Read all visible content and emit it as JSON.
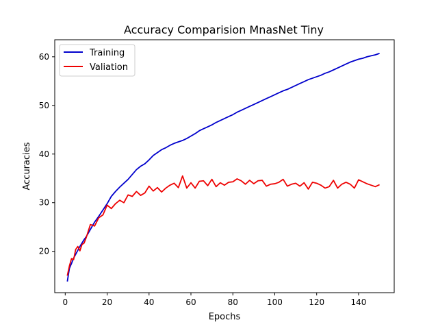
{
  "chart_data": {
    "type": "line",
    "title": "Accuracy Comparision MnasNet Tiny",
    "xlabel": "Epochs",
    "ylabel": "Accuracies",
    "xlim": [
      -5,
      157
    ],
    "ylim": [
      11.5,
      63.5
    ],
    "xticks": [
      0,
      20,
      40,
      60,
      80,
      100,
      120,
      140
    ],
    "yticks": [
      20,
      30,
      40,
      50,
      60
    ],
    "grid": false,
    "legend": "top-left",
    "series": [
      {
        "name": "Training",
        "color": "#0000cc",
        "x": [
          1,
          2,
          3,
          4,
          5,
          6,
          7,
          8,
          9,
          10,
          12,
          14,
          16,
          18,
          20,
          22,
          24,
          26,
          28,
          30,
          32,
          34,
          36,
          38,
          40,
          42,
          44,
          46,
          48,
          50,
          52,
          54,
          56,
          58,
          60,
          62,
          64,
          66,
          68,
          70,
          72,
          74,
          76,
          78,
          80,
          82,
          84,
          86,
          88,
          90,
          92,
          94,
          96,
          98,
          100,
          102,
          104,
          106,
          108,
          110,
          112,
          114,
          116,
          118,
          120,
          122,
          124,
          126,
          128,
          130,
          132,
          134,
          136,
          138,
          140,
          142,
          144,
          146,
          148,
          150
        ],
        "values": [
          13.8,
          16.5,
          17.5,
          18.6,
          19.4,
          20.2,
          21.0,
          21.7,
          22.4,
          23.0,
          24.5,
          26.0,
          27.2,
          28.5,
          29.8,
          31.3,
          32.3,
          33.2,
          34.0,
          34.8,
          35.8,
          36.8,
          37.5,
          38.0,
          38.8,
          39.7,
          40.3,
          40.9,
          41.3,
          41.8,
          42.2,
          42.5,
          42.8,
          43.2,
          43.7,
          44.2,
          44.8,
          45.2,
          45.6,
          46.0,
          46.5,
          46.9,
          47.3,
          47.7,
          48.1,
          48.6,
          49.0,
          49.4,
          49.8,
          50.2,
          50.6,
          51.0,
          51.4,
          51.8,
          52.2,
          52.6,
          53.0,
          53.3,
          53.7,
          54.1,
          54.5,
          54.9,
          55.3,
          55.6,
          55.9,
          56.2,
          56.6,
          56.9,
          57.3,
          57.7,
          58.1,
          58.5,
          58.9,
          59.2,
          59.5,
          59.7,
          60.0,
          60.2,
          60.4,
          60.7
        ]
      },
      {
        "name": "Valiation",
        "color": "#ee0000",
        "x": [
          1,
          2,
          3,
          4,
          5,
          6,
          7,
          8,
          9,
          10,
          12,
          14,
          16,
          18,
          20,
          22,
          24,
          26,
          28,
          30,
          32,
          34,
          36,
          38,
          40,
          42,
          44,
          46,
          48,
          50,
          52,
          54,
          56,
          58,
          60,
          62,
          64,
          66,
          68,
          70,
          72,
          74,
          76,
          78,
          80,
          82,
          84,
          86,
          88,
          90,
          92,
          94,
          96,
          98,
          100,
          102,
          104,
          106,
          108,
          110,
          112,
          114,
          116,
          118,
          120,
          122,
          124,
          126,
          128,
          130,
          132,
          134,
          136,
          138,
          140,
          142,
          144,
          146,
          148,
          150
        ],
        "values": [
          15.0,
          17.0,
          18.5,
          18.3,
          20.4,
          21.0,
          20.1,
          21.4,
          21.7,
          22.8,
          25.5,
          25.2,
          26.9,
          27.5,
          29.5,
          28.8,
          29.8,
          30.5,
          30.0,
          31.6,
          31.3,
          32.3,
          31.5,
          32.0,
          33.4,
          32.4,
          33.1,
          32.2,
          33.0,
          33.6,
          34.0,
          33.1,
          35.5,
          33.0,
          34.1,
          33.0,
          34.4,
          34.5,
          33.5,
          34.8,
          33.3,
          34.1,
          33.6,
          34.2,
          34.3,
          34.9,
          34.5,
          33.8,
          34.6,
          33.9,
          34.5,
          34.6,
          33.4,
          33.8,
          33.9,
          34.2,
          34.8,
          33.4,
          33.8,
          34.0,
          33.4,
          34.1,
          32.8,
          34.2,
          34.0,
          33.6,
          33.0,
          33.3,
          34.6,
          33.0,
          33.8,
          34.2,
          33.8,
          33.0,
          34.7,
          34.3,
          33.9,
          33.6,
          33.3,
          33.7
        ]
      }
    ]
  }
}
